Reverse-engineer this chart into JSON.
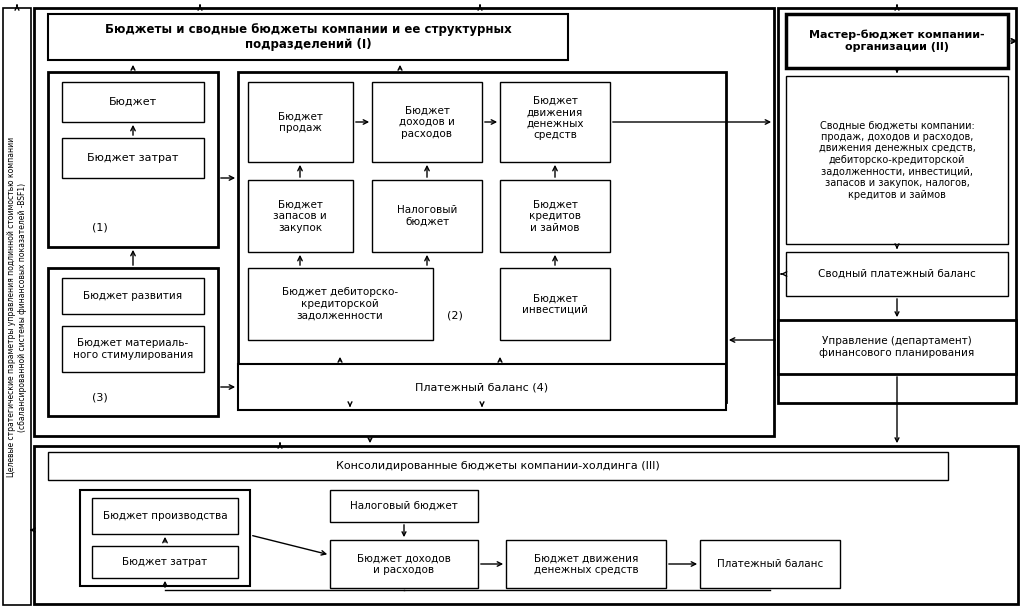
{
  "bg_color": "#ffffff",
  "left_sidebar_text": "Целевые стратегические параметры управления подлинной стоимостью компании\n(сбалансированной системы финансовых показателей -BSF1)",
  "section1_title": "Бюджеты и сводные бюджеты компании и ее структурных\nподразделений (I)",
  "section3_title": "Консолидированные бюджеты компании-холдинга (III)",
  "box1_budget": "Бюджет",
  "box1_costs": "Бюджет затрат",
  "box1_label": "(1)",
  "box3_dev": "Бюджет развития",
  "box3_stim": "Бюджет материаль-\nного стимулирования",
  "box3_label": "(3)",
  "box_sales": "Бюджет\nпродаж",
  "box_income": "Бюджет\nдоходов и\nрасходов",
  "box_cashflow": "Бюджет\nдвижения\nденежных\nсредств",
  "box_stock": "Бюджет\nзапасов и\nзакупок",
  "box_tax": "Налоговый\nбюджет",
  "box_credit": "Бюджет\nкредитов\nи займов",
  "box_debt": "Бюджет дебиторско-\nкредиторской\nзадолженности",
  "box_invest": "Бюджет\nинвестиций",
  "box2_label": "(2)",
  "box_payment": "Платежный баланс (4)",
  "box_master": "Мастер-бюджет компании-\nорганизации (II)",
  "box_svod": "Сводные бюджеты компании:\nпродаж, доходов и расходов,\nдвижения денежных средств,\nдебиторско-кредиторской\nзадолженности, инвестиций,\nзапасов и закупок, налогов,\nкредитов и займов",
  "box_svodpay": "Сводный платежный баланс",
  "box_dept": "Управление (департамент)\nфинансового планирования",
  "box_prod": "Бюджет производства",
  "box_costs3": "Бюджет затрат",
  "box_tax3": "Налоговый бюджет",
  "box_income3": "Бюджет доходов\nи расходов",
  "box_cashflow3": "Бюджет движения\nденежных средств",
  "box_pay3": "Платежный баланс"
}
